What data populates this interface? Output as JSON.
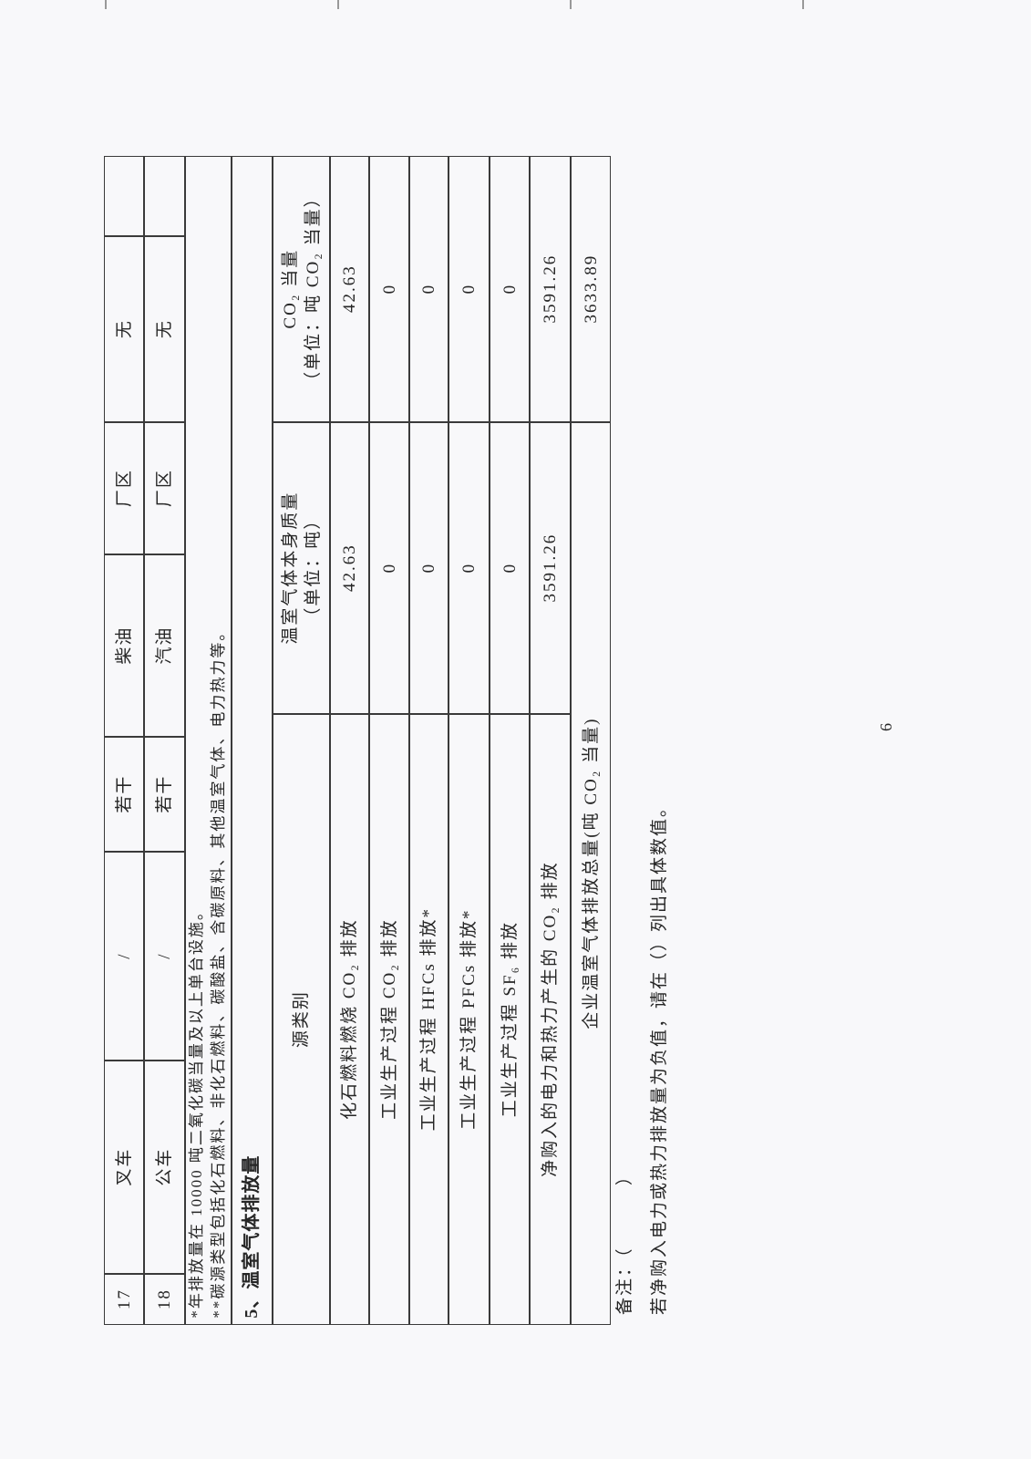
{
  "equipment_rows": [
    {
      "no": "17",
      "name": "叉车",
      "model": "/",
      "count": "若干",
      "fuel": "柴油",
      "location": "厂区",
      "note": "无",
      "extra": ""
    },
    {
      "no": "18",
      "name": "公车",
      "model": "/",
      "count": "若干",
      "fuel": "汽油",
      "location": "厂区",
      "note": "无",
      "extra": ""
    }
  ],
  "footnotes": [
    "*年排放量在 10000 吨二氧化碳当量及以上单台设施。",
    "**碳源类型包括化石燃料、非化石燃料、碳酸盐、含碳原料、其他温室气体、电力热力等。"
  ],
  "section_title": "5、温室气体排放量",
  "emissions_table": {
    "headers": [
      "源类别",
      "温室气体本身质量\n（单位：吨）",
      "CO₂ 当量\n（单位：吨 CO₂ 当量）"
    ],
    "rows": [
      {
        "source": "化石燃料燃烧 CO₂ 排放",
        "mass": "42.63",
        "co2e": "42.63"
      },
      {
        "source": "工业生产过程 CO₂ 排放",
        "mass": "0",
        "co2e": "0"
      },
      {
        "source": "工业生产过程 HFCs 排放*",
        "mass": "0",
        "co2e": "0"
      },
      {
        "source": "工业生产过程 PFCs 排放*",
        "mass": "0",
        "co2e": "0"
      },
      {
        "source": "工业生产过程 SF₆ 排放",
        "mass": "0",
        "co2e": "0"
      },
      {
        "source": "净购入的电力和热力产生的 CO₂ 排放",
        "mass": "3591.26",
        "co2e": "3591.26"
      }
    ],
    "total": {
      "label": "企业温室气体排放总量(吨 CO₂ 当量)",
      "co2e": "3633.89"
    }
  },
  "remarks": {
    "label": "备注：（          ）",
    "text": "若净购入电力或热力排放量为负值，请在（）列出具体数值。"
  },
  "page_number": "6"
}
